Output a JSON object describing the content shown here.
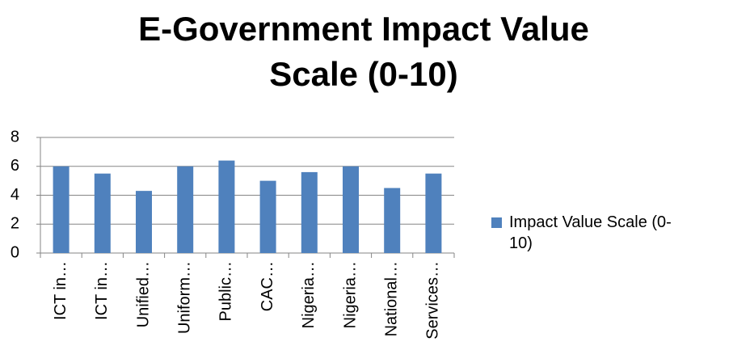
{
  "chart_data": {
    "type": "bar",
    "title": "E-Government Impact Value Scale (0-10)",
    "categories": [
      "ICT in…",
      "ICT in…",
      "Unified…",
      "Uniform…",
      "Public…",
      "CAC…",
      "Nigeria…",
      "Nigeria…",
      "National…",
      "Services…"
    ],
    "series": [
      {
        "name": "Impact Value Scale (0-10)",
        "color": "#4f81bd",
        "values": [
          6,
          5.5,
          4.3,
          6,
          6.4,
          5,
          5.6,
          6,
          4.5,
          5.5
        ]
      }
    ],
    "ylim": [
      0,
      8
    ],
    "yticks": [
      0,
      2,
      4,
      6,
      8
    ],
    "grid": true,
    "legend": "right"
  }
}
